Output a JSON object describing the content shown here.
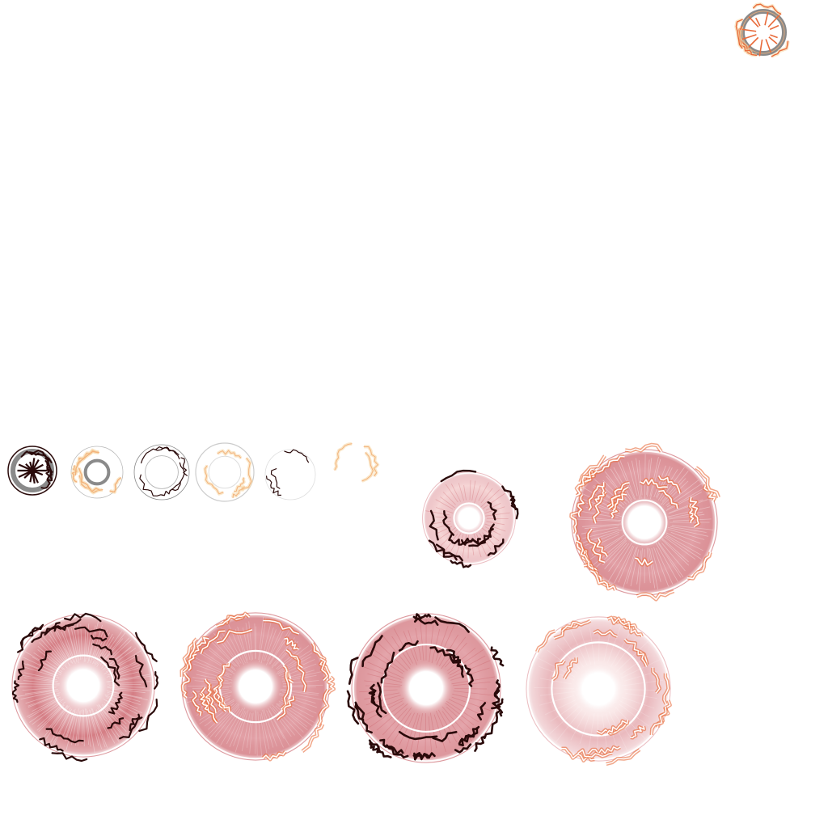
{
  "sprite_sheet": {
    "background": "#ffffff",
    "colors": {
      "crimson": "#c0404a",
      "rose": "#d9828a",
      "blush": "#f2c6c6",
      "ember": "#e86a3a",
      "peach": "#f3b27c",
      "gold": "#f7d9a8",
      "char": "#2a0a0a",
      "steel": "#8a8a8a",
      "white": "#ffffff"
    },
    "frames": [
      {
        "id": "f-icon",
        "name": "icon-burst-ring",
        "kind": "icon"
      },
      {
        "id": "f-s1",
        "name": "small-frame-1",
        "kind": "small-dark"
      },
      {
        "id": "f-s2",
        "name": "small-frame-2",
        "kind": "small-gray"
      },
      {
        "id": "f-s3",
        "name": "small-frame-3",
        "kind": "small-thin"
      },
      {
        "id": "f-s4",
        "name": "small-frame-4",
        "kind": "small-faint"
      },
      {
        "id": "f-s5",
        "name": "small-frame-5",
        "kind": "small-fading"
      },
      {
        "id": "f-s6",
        "name": "small-frame-6",
        "kind": "small-wisp"
      },
      {
        "id": "f-m1",
        "name": "medium-frame",
        "kind": "medium-dark"
      },
      {
        "id": "f-l1",
        "name": "large-frame",
        "kind": "large-fire"
      },
      {
        "id": "f-b1",
        "name": "big-frame-1",
        "kind": "big-dark"
      },
      {
        "id": "f-b2",
        "name": "big-frame-2",
        "kind": "big-fire"
      },
      {
        "id": "f-b3",
        "name": "big-frame-3",
        "kind": "big-dark-thick"
      },
      {
        "id": "f-b4",
        "name": "big-frame-4",
        "kind": "big-faded"
      }
    ]
  }
}
